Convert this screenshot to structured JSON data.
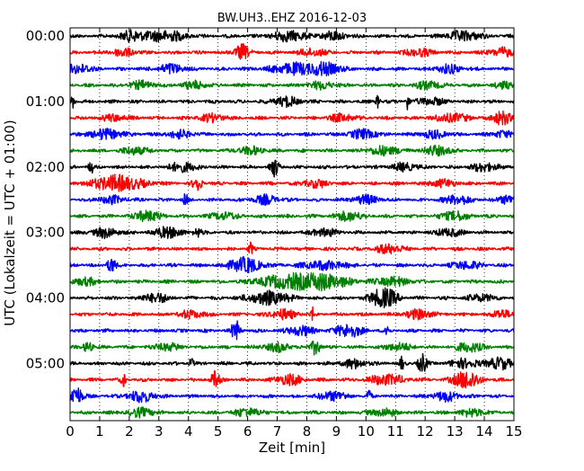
{
  "chart_data": {
    "type": "line",
    "title": "BW.UH3..EHZ 2016-12-03",
    "xlabel": "Zeit  [min]",
    "ylabel": "UTC (Lokalzeit = UTC + 01:00)",
    "xlim": [
      0,
      15
    ],
    "x_ticks": [
      "0",
      "1",
      "2",
      "3",
      "4",
      "5",
      "6",
      "7",
      "8",
      "9",
      "10",
      "11",
      "12",
      "13",
      "14",
      "15"
    ],
    "y_tick_labels": [
      "00:00",
      "01:00",
      "02:00",
      "03:00",
      "04:00",
      "05:00"
    ],
    "trace_interval_min": 15,
    "grid": {
      "vertical_dotted": true
    },
    "trace_colors": [
      "#000000",
      "#ff0000",
      "#0000ff",
      "#008000"
    ],
    "traces": [
      {
        "start_utc": "00:00",
        "color": "#000000",
        "bursts": [
          [
            2.1,
            0.3,
            0.45
          ],
          [
            3.2,
            0.5,
            0.5
          ],
          [
            7.4,
            0.4,
            0.5
          ],
          [
            8.9,
            0.3,
            0.4
          ],
          [
            13.3,
            0.4,
            0.45
          ]
        ]
      },
      {
        "start_utc": "00:15",
        "color": "#ff0000",
        "bursts": [
          [
            1.8,
            0.3,
            0.35
          ],
          [
            5.8,
            0.15,
            0.8
          ],
          [
            8.2,
            0.3,
            0.35
          ],
          [
            11.8,
            0.3,
            0.35
          ],
          [
            14.6,
            0.3,
            0.4
          ]
        ]
      },
      {
        "start_utc": "00:30",
        "color": "#0000ff",
        "bursts": [
          [
            0.3,
            0.3,
            0.45
          ],
          [
            3.4,
            0.3,
            0.45
          ],
          [
            7.5,
            0.5,
            0.5
          ],
          [
            8.6,
            0.4,
            0.55
          ],
          [
            12.8,
            0.3,
            0.4
          ]
        ]
      },
      {
        "start_utc": "00:45",
        "color": "#008000",
        "bursts": [
          [
            2.4,
            0.3,
            0.35
          ],
          [
            4.2,
            0.3,
            0.35
          ],
          [
            8.5,
            0.3,
            0.35
          ],
          [
            12.1,
            0.3,
            0.35
          ],
          [
            14.7,
            0.2,
            0.35
          ]
        ]
      },
      {
        "start_utc": "01:00",
        "color": "#000000",
        "bursts": [
          [
            0.1,
            0.05,
            0.6
          ],
          [
            7.3,
            0.3,
            0.45
          ],
          [
            10.4,
            0.05,
            0.6
          ],
          [
            11.4,
            0.05,
            0.8
          ],
          [
            12.2,
            0.3,
            0.35
          ]
        ]
      },
      {
        "start_utc": "01:15",
        "color": "#ff0000",
        "bursts": [
          [
            1.5,
            0.3,
            0.3
          ],
          [
            4.8,
            0.3,
            0.35
          ],
          [
            9.2,
            0.3,
            0.35
          ],
          [
            12.9,
            0.4,
            0.4
          ],
          [
            14.6,
            0.2,
            0.7
          ]
        ]
      },
      {
        "start_utc": "01:30",
        "color": "#0000ff",
        "bursts": [
          [
            1.2,
            0.4,
            0.45
          ],
          [
            3.7,
            0.3,
            0.35
          ],
          [
            9.9,
            0.3,
            0.45
          ],
          [
            12.3,
            0.3,
            0.35
          ],
          [
            14.6,
            0.2,
            0.35
          ]
        ]
      },
      {
        "start_utc": "01:45",
        "color": "#008000",
        "bursts": [
          [
            2.2,
            0.3,
            0.35
          ],
          [
            6.1,
            0.3,
            0.35
          ],
          [
            10.6,
            0.4,
            0.4
          ],
          [
            12.4,
            0.3,
            0.45
          ]
        ]
      },
      {
        "start_utc": "02:00",
        "color": "#000000",
        "bursts": [
          [
            0.7,
            0.05,
            0.7
          ],
          [
            3.8,
            0.3,
            0.45
          ],
          [
            6.9,
            0.1,
            1.0
          ],
          [
            11.3,
            0.3,
            0.35
          ],
          [
            14.0,
            0.3,
            0.4
          ]
        ]
      },
      {
        "start_utc": "02:15",
        "color": "#ff0000",
        "bursts": [
          [
            1.6,
            0.6,
            0.75
          ],
          [
            4.3,
            0.1,
            0.8
          ],
          [
            8.3,
            0.3,
            0.35
          ],
          [
            12.6,
            0.3,
            0.35
          ]
        ]
      },
      {
        "start_utc": "02:30",
        "color": "#0000ff",
        "bursts": [
          [
            1.4,
            0.3,
            0.35
          ],
          [
            3.9,
            0.05,
            0.6
          ],
          [
            6.6,
            0.3,
            0.4
          ],
          [
            10.0,
            0.3,
            0.4
          ],
          [
            13.1,
            0.3,
            0.45
          ],
          [
            14.8,
            0.2,
            0.45
          ]
        ]
      },
      {
        "start_utc": "02:45",
        "color": "#008000",
        "bursts": [
          [
            2.6,
            0.3,
            0.5
          ],
          [
            5.2,
            0.3,
            0.35
          ],
          [
            9.4,
            0.3,
            0.45
          ],
          [
            13.0,
            0.3,
            0.45
          ]
        ]
      },
      {
        "start_utc": "03:00",
        "color": "#000000",
        "bursts": [
          [
            1.2,
            0.3,
            0.45
          ],
          [
            3.3,
            0.3,
            0.55
          ],
          [
            4.3,
            0.1,
            0.45
          ],
          [
            8.6,
            0.3,
            0.35
          ],
          [
            12.8,
            0.3,
            0.35
          ]
        ]
      },
      {
        "start_utc": "03:15",
        "color": "#ff0000",
        "bursts": [
          [
            6.1,
            0.05,
            0.6
          ],
          [
            10.8,
            0.3,
            0.45
          ]
        ]
      },
      {
        "start_utc": "03:30",
        "color": "#0000ff",
        "bursts": [
          [
            1.4,
            0.1,
            0.75
          ],
          [
            5.9,
            0.4,
            0.7
          ],
          [
            8.6,
            0.5,
            0.4
          ],
          [
            13.4,
            0.3,
            0.4
          ]
        ]
      },
      {
        "start_utc": "03:45",
        "color": "#008000",
        "bursts": [
          [
            0.5,
            0.3,
            0.35
          ],
          [
            7.3,
            0.7,
            0.6
          ],
          [
            8.6,
            0.6,
            0.65
          ],
          [
            10.9,
            0.4,
            0.4
          ]
        ]
      },
      {
        "start_utc": "04:00",
        "color": "#000000",
        "bursts": [
          [
            2.9,
            0.3,
            0.45
          ],
          [
            6.7,
            0.5,
            0.6
          ],
          [
            10.6,
            0.3,
            1.0
          ],
          [
            13.9,
            0.3,
            0.35
          ]
        ]
      },
      {
        "start_utc": "04:15",
        "color": "#ff0000",
        "bursts": [
          [
            4.1,
            0.3,
            0.35
          ],
          [
            7.2,
            0.3,
            0.45
          ],
          [
            8.2,
            0.05,
            0.6
          ],
          [
            11.8,
            0.3,
            0.45
          ],
          [
            14.6,
            0.2,
            0.45
          ]
        ]
      },
      {
        "start_utc": "04:30",
        "color": "#0000ff",
        "bursts": [
          [
            5.6,
            0.1,
            1.0
          ],
          [
            7.8,
            0.3,
            0.45
          ],
          [
            9.4,
            0.3,
            0.65
          ],
          [
            10.7,
            0.05,
            0.7
          ]
        ]
      },
      {
        "start_utc": "04:45",
        "color": "#008000",
        "bursts": [
          [
            0.6,
            0.1,
            0.55
          ],
          [
            3.3,
            0.3,
            0.35
          ],
          [
            7.0,
            0.3,
            0.4
          ],
          [
            8.3,
            0.1,
            0.8
          ],
          [
            11.1,
            0.3,
            0.35
          ],
          [
            13.5,
            0.3,
            0.45
          ]
        ]
      },
      {
        "start_utc": "05:00",
        "color": "#000000",
        "bursts": [
          [
            4.1,
            0.05,
            0.5
          ],
          [
            9.6,
            0.3,
            0.4
          ],
          [
            11.2,
            0.05,
            0.65
          ],
          [
            11.9,
            0.1,
            1.0
          ],
          [
            13.3,
            0.3,
            0.45
          ],
          [
            14.5,
            0.3,
            0.55
          ]
        ]
      },
      {
        "start_utc": "05:15",
        "color": "#ff0000",
        "bursts": [
          [
            1.8,
            0.05,
            0.7
          ],
          [
            4.9,
            0.1,
            0.8
          ],
          [
            7.4,
            0.3,
            0.5
          ],
          [
            10.7,
            0.4,
            0.5
          ],
          [
            13.4,
            0.3,
            0.9
          ]
        ]
      },
      {
        "start_utc": "05:30",
        "color": "#0000ff",
        "bursts": [
          [
            0.2,
            0.15,
            1.0
          ],
          [
            2.4,
            0.3,
            0.55
          ],
          [
            8.9,
            0.3,
            0.45
          ],
          [
            10.1,
            0.05,
            0.65
          ],
          [
            12.7,
            0.3,
            0.45
          ]
        ]
      },
      {
        "start_utc": "05:45",
        "color": "#008000",
        "bursts": [
          [
            2.4,
            0.3,
            0.4
          ],
          [
            6.0,
            0.3,
            0.4
          ],
          [
            10.6,
            0.3,
            0.35
          ],
          [
            13.6,
            0.3,
            0.35
          ]
        ]
      }
    ]
  }
}
